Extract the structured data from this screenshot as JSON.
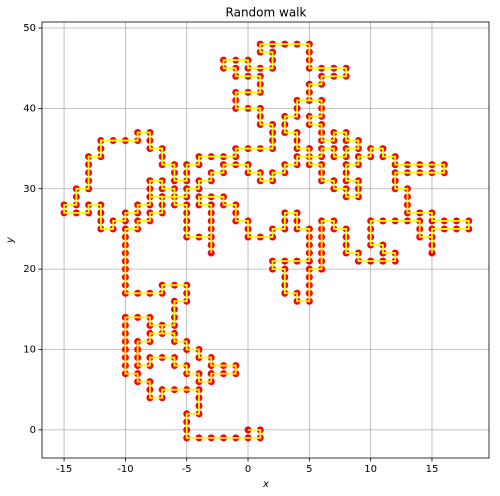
{
  "chart_data": {
    "type": "line",
    "title": "Random walk",
    "x_label": "x",
    "y_label": "y",
    "x": [
      0,
      1,
      1,
      0,
      -1,
      -2,
      -3,
      -4,
      -5,
      -5,
      -5,
      -5,
      -4,
      -4,
      -4,
      -4,
      -5,
      -6,
      -7,
      -7,
      -8,
      -8,
      -8,
      -9,
      -9,
      -10,
      -10,
      -10,
      -10,
      -10,
      -10,
      -10,
      -10,
      -9,
      -8,
      -8,
      -7,
      -7,
      -6,
      -6,
      -5,
      -5,
      -4,
      -4,
      -3,
      -3,
      -2,
      -1,
      -1,
      -2,
      -3,
      -3,
      -4,
      -4,
      -5,
      -5,
      -6,
      -6,
      -7,
      -8,
      -8,
      -9,
      -9,
      -9,
      -9,
      -8,
      -8,
      -7,
      -7,
      -6,
      -6,
      -6,
      -6,
      -5,
      -5,
      -5,
      -6,
      -7,
      -7,
      -8,
      -9,
      -10,
      -10,
      -10,
      -10,
      -10,
      -10,
      -10,
      -10,
      -10,
      -9,
      -9,
      -8,
      -8,
      -7,
      -7,
      -7,
      -8,
      -8,
      -8,
      -7,
      -7,
      -6,
      -6,
      -6,
      -5,
      -5,
      -5,
      -5,
      -5,
      -4,
      -3,
      -3,
      -3,
      -3,
      -3,
      -3,
      -3,
      -3,
      -3,
      -4,
      -4,
      -3,
      -2,
      -2,
      -1,
      -1,
      -1,
      0,
      0,
      0,
      1,
      2,
      2,
      3,
      3,
      3,
      4,
      4,
      4,
      5,
      5,
      5,
      5,
      5,
      4,
      3,
      2,
      2,
      3,
      3,
      3,
      3,
      4,
      4,
      5,
      5,
      5,
      5,
      5,
      6,
      6,
      6,
      6,
      6,
      6,
      6,
      7,
      7,
      8,
      8,
      8,
      8,
      9,
      9,
      10,
      11,
      12,
      12,
      11,
      11,
      10,
      10,
      10,
      10,
      11,
      12,
      13,
      14,
      14,
      14,
      15,
      15,
      15,
      15,
      15,
      15,
      16,
      17,
      18,
      18,
      17,
      16,
      15,
      15,
      14,
      13,
      13,
      13,
      13,
      12,
      12,
      12,
      13,
      14,
      15,
      16,
      16,
      15,
      14,
      13,
      12,
      12,
      11,
      11,
      10,
      10,
      9,
      9,
      8,
      8,
      8,
      9,
      9,
      9,
      8,
      8,
      7,
      7,
      6,
      6,
      6,
      5,
      5,
      5,
      4,
      4,
      4,
      3,
      3,
      3,
      4,
      4,
      4,
      5,
      5,
      5,
      6,
      6,
      7,
      8,
      8,
      7,
      6,
      5,
      5,
      5,
      5,
      4,
      3,
      2,
      1,
      1,
      2,
      2,
      2,
      1,
      0,
      0,
      -1,
      -2,
      -2,
      -1,
      -1,
      0,
      1,
      1,
      1,
      0,
      -1,
      -1,
      -1,
      0,
      1,
      1,
      1,
      2,
      2,
      2,
      2,
      1,
      0,
      -1,
      -1,
      -2,
      -3,
      -4,
      -4,
      -5,
      -5,
      -5,
      -6,
      -6,
      -6,
      -7,
      -7,
      -7,
      -8,
      -8,
      -8,
      -9,
      -9,
      -10,
      -11,
      -12,
      -12,
      -12,
      -13,
      -13,
      -13,
      -13,
      -13,
      -14,
      -14,
      -14,
      -15,
      -15,
      -14,
      -13,
      -13,
      -12,
      -12,
      -12,
      -12,
      -11,
      -11,
      -10,
      -10,
      -9,
      -9,
      -8,
      -8,
      -7,
      -6,
      -5,
      -5,
      -4,
      -4,
      -3,
      -3,
      -2,
      -2,
      -1,
      0,
      0,
      1,
      1,
      2,
      2,
      3,
      3,
      4,
      4,
      5,
      6,
      6,
      7,
      7,
      8,
      8,
      9,
      9,
      8,
      8,
      7,
      7,
      6,
      6,
      6,
      5,
      5,
      6,
      6,
      6,
      5
    ],
    "values": [
      0,
      0,
      -1,
      -1,
      -1,
      -1,
      -1,
      -1,
      -1,
      0,
      1,
      2,
      2,
      3,
      4,
      5,
      5,
      5,
      5,
      4,
      4,
      5,
      6,
      6,
      7,
      7,
      8,
      9,
      10,
      11,
      12,
      13,
      14,
      14,
      14,
      13,
      13,
      12,
      12,
      11,
      11,
      10,
      10,
      9,
      9,
      8,
      8,
      8,
      7,
      7,
      7,
      6,
      6,
      7,
      7,
      8,
      8,
      9,
      9,
      9,
      8,
      8,
      9,
      10,
      11,
      11,
      12,
      12,
      13,
      13,
      14,
      15,
      16,
      16,
      17,
      18,
      18,
      18,
      17,
      17,
      17,
      17,
      18,
      19,
      20,
      21,
      22,
      23,
      24,
      25,
      25,
      26,
      26,
      27,
      27,
      28,
      29,
      29,
      30,
      31,
      31,
      30,
      30,
      29,
      28,
      28,
      27,
      26,
      25,
      24,
      24,
      24,
      23,
      22,
      23,
      24,
      25,
      26,
      27,
      28,
      28,
      29,
      29,
      29,
      28,
      28,
      27,
      26,
      26,
      25,
      24,
      24,
      24,
      25,
      25,
      26,
      27,
      27,
      26,
      25,
      25,
      24,
      23,
      22,
      21,
      21,
      21,
      21,
      20,
      20,
      19,
      18,
      17,
      17,
      16,
      16,
      17,
      18,
      19,
      20,
      20,
      21,
      22,
      23,
      24,
      25,
      26,
      26,
      25,
      25,
      24,
      23,
      22,
      22,
      21,
      21,
      21,
      21,
      22,
      22,
      23,
      23,
      24,
      25,
      26,
      26,
      26,
      26,
      26,
      25,
      24,
      24,
      23,
      22,
      23,
      24,
      25,
      25,
      25,
      25,
      26,
      26,
      26,
      26,
      27,
      27,
      27,
      28,
      29,
      30,
      30,
      31,
      32,
      32,
      32,
      32,
      32,
      33,
      33,
      33,
      33,
      33,
      34,
      34,
      35,
      35,
      34,
      34,
      33,
      33,
      32,
      31,
      31,
      30,
      29,
      29,
      30,
      30,
      31,
      31,
      32,
      33,
      33,
      34,
      35,
      35,
      36,
      37,
      37,
      38,
      39,
      39,
      40,
      41,
      41,
      42,
      43,
      43,
      44,
      44,
      44,
      45,
      45,
      45,
      45,
      46,
      47,
      48,
      48,
      48,
      48,
      48,
      47,
      47,
      46,
      45,
      45,
      45,
      46,
      46,
      46,
      45,
      45,
      44,
      44,
      44,
      43,
      42,
      42,
      42,
      41,
      40,
      40,
      40,
      39,
      38,
      38,
      37,
      36,
      35,
      35,
      35,
      35,
      34,
      34,
      34,
      34,
      33,
      33,
      32,
      31,
      31,
      32,
      33,
      33,
      34,
      35,
      35,
      36,
      37,
      37,
      36,
      36,
      36,
      36,
      35,
      34,
      34,
      33,
      32,
      31,
      30,
      30,
      29,
      28,
      28,
      27,
      27,
      27,
      28,
      28,
      27,
      26,
      25,
      25,
      26,
      26,
      27,
      27,
      28,
      28,
      29,
      29,
      29,
      29,
      30,
      30,
      31,
      31,
      32,
      32,
      33,
      33,
      33,
      32,
      32,
      31,
      31,
      32,
      32,
      33,
      33,
      34,
      34,
      34,
      35,
      35,
      34,
      34,
      35,
      35,
      36,
      36,
      37,
      37,
      36,
      36,
      37,
      38,
      38,
      39,
      39,
      40,
      41,
      41
    ],
    "line_color": "#ffff00",
    "marker_color": "#ff0000",
    "xlim": [
      -16.8,
      19.65
    ],
    "ylim": [
      -3.5,
      50.75
    ],
    "xticks": [
      -15,
      -10,
      -5,
      0,
      5,
      10,
      15
    ],
    "yticks": [
      0,
      10,
      20,
      30,
      40,
      50
    ],
    "grid": true
  }
}
